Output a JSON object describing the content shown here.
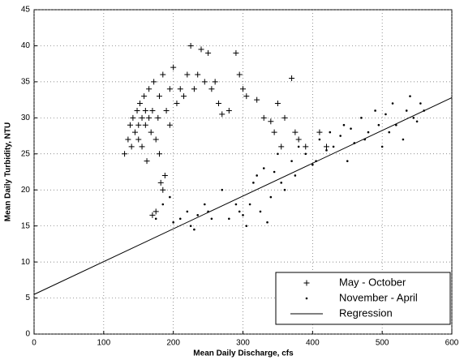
{
  "chart_data": {
    "type": "scatter",
    "xlabel": "Mean Daily Discharge, cfs",
    "ylabel": "Mean Daily Turbidity, NTU",
    "xlim": [
      0,
      600
    ],
    "ylim": [
      0,
      45
    ],
    "xticks": [
      0,
      100,
      200,
      300,
      400,
      500,
      600
    ],
    "yticks": [
      0,
      5,
      10,
      15,
      20,
      25,
      30,
      35,
      40,
      45
    ],
    "grid": true,
    "legend": "lower right",
    "series": [
      {
        "name": "May - October",
        "color": "#000000",
        "marker": "plus",
        "x": [
          130,
          135,
          138,
          140,
          142,
          145,
          148,
          150,
          150,
          152,
          155,
          155,
          158,
          160,
          160,
          162,
          165,
          165,
          168,
          170,
          170,
          172,
          175,
          175,
          178,
          180,
          180,
          182,
          185,
          185,
          188,
          190,
          195,
          195,
          200,
          205,
          210,
          215,
          220,
          225,
          230,
          235,
          240,
          245,
          250,
          255,
          260,
          265,
          270,
          280,
          290,
          295,
          300,
          305,
          320,
          330,
          340,
          345,
          350,
          355,
          360,
          370,
          375,
          380,
          390,
          410,
          420
        ],
        "values": [
          25,
          27,
          29,
          26,
          30,
          28,
          31,
          29,
          27,
          32,
          30,
          26,
          33,
          29,
          31,
          24,
          30,
          34,
          28,
          31,
          16.5,
          35,
          27,
          17,
          30,
          25,
          33,
          21,
          36,
          20,
          22,
          31,
          29,
          34,
          37,
          32,
          34,
          33,
          36,
          40,
          34,
          36,
          39.5,
          35,
          39,
          34,
          35,
          32,
          30.5,
          31,
          39,
          36,
          34,
          33,
          32.5,
          30,
          29.5,
          28,
          32,
          26,
          30,
          35.5,
          28,
          27,
          26,
          28,
          26
        ]
      },
      {
        "name": "November - April",
        "color": "#000000",
        "marker": "dot",
        "x": [
          175,
          185,
          195,
          200,
          210,
          220,
          225,
          230,
          235,
          245,
          250,
          255,
          270,
          280,
          290,
          295,
          300,
          305,
          310,
          315,
          320,
          325,
          330,
          335,
          340,
          345,
          350,
          355,
          360,
          370,
          375,
          380,
          390,
          400,
          405,
          410,
          420,
          425,
          430,
          440,
          445,
          450,
          455,
          460,
          470,
          475,
          480,
          490,
          495,
          500,
          505,
          510,
          515,
          520,
          530,
          535,
          540,
          545,
          550,
          555,
          560
        ],
        "values": [
          16,
          18,
          19,
          15.5,
          16,
          17,
          15,
          14.5,
          16.5,
          18,
          17,
          16,
          20,
          16,
          18,
          17,
          16.5,
          15,
          18,
          21,
          22,
          17,
          23,
          15.5,
          19,
          22.5,
          25,
          21,
          20,
          24,
          22,
          26,
          25,
          23.5,
          24,
          27,
          25.5,
          28,
          26,
          27.5,
          29,
          24,
          28.5,
          26.5,
          30,
          27,
          28,
          31,
          29,
          26,
          30.5,
          28,
          32,
          29,
          27,
          31,
          33,
          30,
          29.5,
          32,
          31
        ]
      },
      {
        "name": "Regression",
        "color": "#000000",
        "marker": "line",
        "x": [
          0,
          600
        ],
        "values": [
          5.5,
          32.8
        ]
      }
    ]
  }
}
